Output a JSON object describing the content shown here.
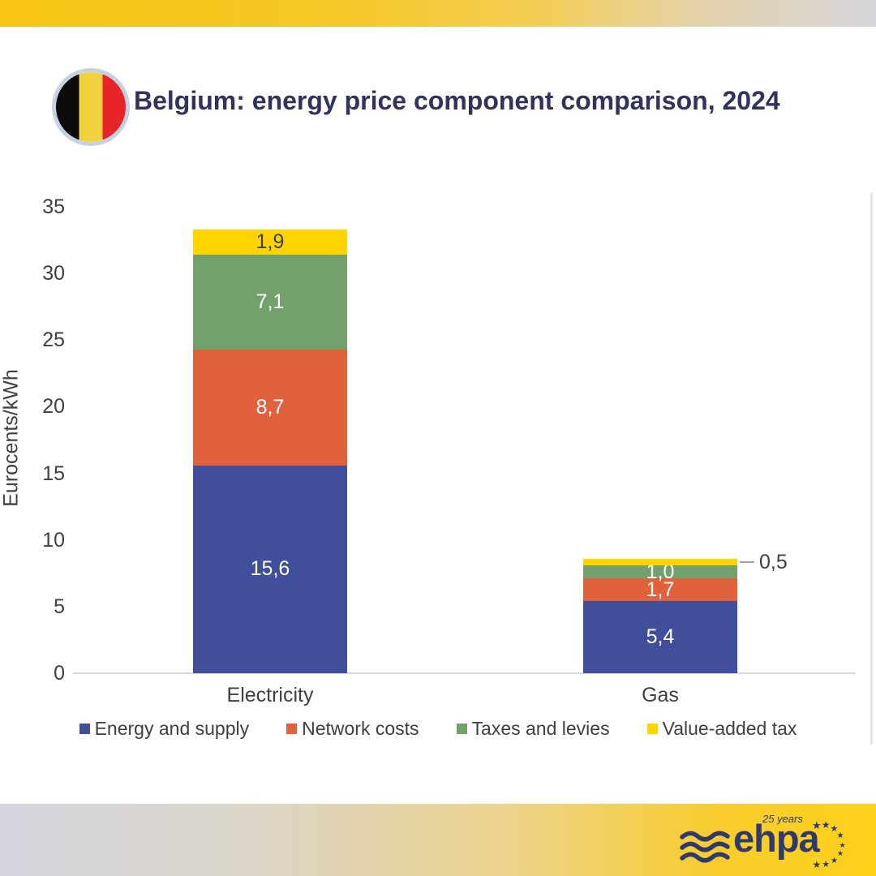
{
  "header": {
    "title": "Belgium: energy price component comparison, 2024",
    "flag": {
      "country": "Belgium",
      "colors": {
        "black": "#0B0B0B",
        "yellow": "#F1D23C",
        "red": "#E8242B"
      },
      "ring_color": "#C7D1E4"
    },
    "title_color": "#32325F",
    "band_gradient": {
      "yellow": "#F8C513",
      "gray": "#D5D4DA"
    }
  },
  "chart_data": {
    "type": "bar",
    "stacked": true,
    "title": "Belgium: energy price component comparison, 2024",
    "xlabel": "",
    "ylabel": "Eurocents/kWh",
    "ylim": [
      0,
      35
    ],
    "yticks": [
      0,
      5,
      10,
      15,
      20,
      25,
      30,
      35
    ],
    "grid": false,
    "legend_position": "bottom",
    "categories": [
      "Electricity",
      "Gas"
    ],
    "series": [
      {
        "name": "Energy and supply",
        "color": "#414E9B",
        "values": [
          15.6,
          5.4
        ],
        "labels": [
          "15,6",
          "5,4"
        ],
        "label_color": "#FFFFFF",
        "label_outside": [
          false,
          false
        ]
      },
      {
        "name": "Network costs",
        "color": "#E0613C",
        "values": [
          8.7,
          1.7
        ],
        "labels": [
          "8,7",
          "1,7"
        ],
        "label_color": "#FFFFFF",
        "label_outside": [
          false,
          false
        ]
      },
      {
        "name": "Taxes and levies",
        "color": "#72A16C",
        "values": [
          7.1,
          1.0
        ],
        "labels": [
          "7,1",
          "1,0"
        ],
        "label_color": "#FFFFFF",
        "label_outside": [
          false,
          false
        ]
      },
      {
        "name": "Value-added tax",
        "color": "#FFD400",
        "values": [
          1.9,
          0.5
        ],
        "labels": [
          "1,9",
          "0,5"
        ],
        "label_color": "#3F3F3F",
        "label_outside": [
          false,
          true
        ]
      }
    ]
  },
  "footer": {
    "logo_text": "ehpa",
    "anniversary": "25 years",
    "star_icon": "★",
    "brand_color": "#2E3A6E"
  }
}
